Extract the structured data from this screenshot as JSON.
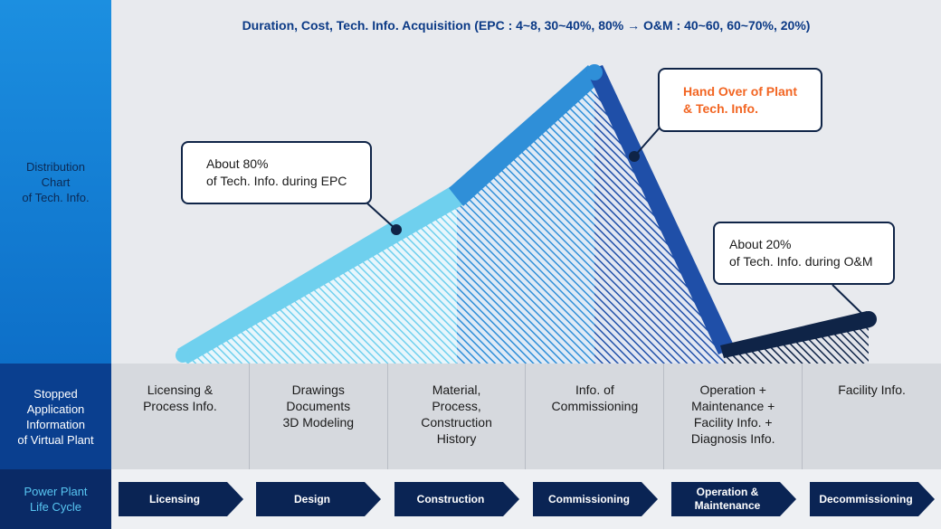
{
  "header": {
    "title": "Duration, Cost, Tech. Info. Acquisition (EPC : 4~8,  30~40%, 80% → O&M : 40~60, 60~70%, 20%)"
  },
  "left_labels": {
    "distribution": [
      "Distribution",
      "Chart",
      "of Tech. Info."
    ],
    "stopped": [
      "Stopped",
      "Application",
      "Information",
      "of Virtual Plant"
    ],
    "lifecycle": [
      "Power Plant",
      "Life Cycle"
    ]
  },
  "callouts": {
    "epc": [
      "About 80%",
      "of Tech. Info. during EPC"
    ],
    "handover": [
      "Hand Over of Plant",
      "& Tech. Info."
    ],
    "om": [
      "About 20%",
      "of Tech. Info. during O&M"
    ]
  },
  "info_cells": [
    [
      "Licensing &",
      "Process Info."
    ],
    [
      "Drawings",
      "Documents",
      "3D Modeling"
    ],
    [
      "Material,",
      "Process,",
      "Construction",
      "History"
    ],
    [
      "Info. of",
      "Commissioning"
    ],
    [
      "Operation +",
      "Maintenance +",
      "Facility Info. +",
      "Diagnosis Info."
    ],
    [
      "Facility Info."
    ]
  ],
  "stages": [
    [
      "Licensing"
    ],
    [
      "Design"
    ],
    [
      "Construction"
    ],
    [
      "Commissioning"
    ],
    [
      "Operation &",
      "Maintenance"
    ],
    [
      "Decommissioning"
    ]
  ],
  "colors": {
    "light_cyan": "#6fd0ee",
    "mid_blue": "#2f8fd8",
    "deep_blue": "#1f4fa8",
    "navy": "#0f2447",
    "orange": "#f26522"
  }
}
